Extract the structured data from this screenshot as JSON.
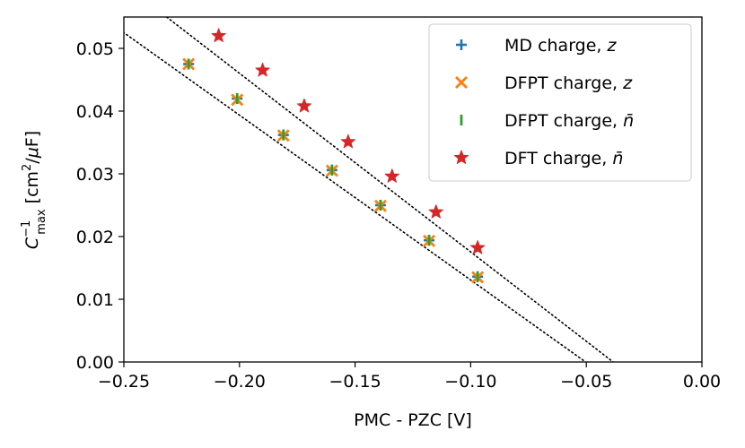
{
  "chart_data": {
    "type": "scatter",
    "xlabel": "PMC - PZC [V]",
    "ylabel": "C_max^-1 [cm²/µF]",
    "xlim": [
      -0.25,
      0.0
    ],
    "ylim": [
      0.0,
      0.055
    ],
    "x_ticks": [
      -0.25,
      -0.2,
      -0.15,
      -0.1,
      -0.05,
      0.0
    ],
    "x_tick_labels": [
      "−0.25",
      "−0.20",
      "−0.15",
      "−0.10",
      "−0.05",
      "0.00"
    ],
    "y_ticks": [
      0.0,
      0.01,
      0.02,
      0.03,
      0.04,
      0.05
    ],
    "y_tick_labels": [
      "0.00",
      "0.01",
      "0.02",
      "0.03",
      "0.04",
      "0.05"
    ],
    "grid": false,
    "legend_position": "top-right",
    "series": [
      {
        "name": "MD charge, z",
        "marker": "plus",
        "color": "#1f77b4",
        "x": [
          -0.222,
          -0.201,
          -0.181,
          -0.16,
          -0.139,
          -0.118,
          -0.097
        ],
        "y": [
          0.0475,
          0.042,
          0.0362,
          0.0306,
          0.025,
          0.0194,
          0.0136
        ]
      },
      {
        "name": "DFPT charge, z",
        "marker": "x",
        "color": "#ff7f0e",
        "x": [
          -0.222,
          -0.201,
          -0.181,
          -0.16,
          -0.139,
          -0.118,
          -0.097
        ],
        "y": [
          0.0475,
          0.0418,
          0.0361,
          0.0305,
          0.0249,
          0.0193,
          0.0135
        ]
      },
      {
        "name": "DFPT charge, n̄",
        "marker": "vline",
        "color": "#2ca02c",
        "x": [
          -0.222,
          -0.201,
          -0.181,
          -0.16,
          -0.139,
          -0.118,
          -0.097
        ],
        "y": [
          0.0475,
          0.042,
          0.0362,
          0.0306,
          0.025,
          0.0194,
          0.0136
        ]
      },
      {
        "name": "DFT charge, n̄",
        "marker": "star",
        "color": "#d62728",
        "x": [
          -0.209,
          -0.19,
          -0.172,
          -0.153,
          -0.134,
          -0.115,
          -0.097
        ],
        "y": [
          0.052,
          0.0465,
          0.0408,
          0.0351,
          0.0296,
          0.0239,
          0.0182
        ]
      }
    ],
    "fit_lines": [
      {
        "name": "fit-lower",
        "style": "dotted",
        "color": "#000000",
        "x": [
          -0.2595,
          -0.0503
        ],
        "y": [
          0.055,
          0.0
        ]
      },
      {
        "name": "fit-upper",
        "style": "dotted",
        "color": "#000000",
        "x": [
          -0.2315,
          -0.0384
        ],
        "y": [
          0.055,
          0.0
        ]
      }
    ],
    "legend": {
      "entries": [
        {
          "prefix": "MD charge, ",
          "sym": "z"
        },
        {
          "prefix": "DFPT charge, ",
          "sym": "z"
        },
        {
          "prefix": "DFPT charge, ",
          "sym": "n̄"
        },
        {
          "prefix": "DFT charge, ",
          "sym": "n̄"
        }
      ]
    },
    "axis_label_parts": {
      "x": "PMC - PZC [V]",
      "y_base": "C",
      "y_sup": "−1",
      "y_sub": "max",
      "y_units_open": " [cm",
      "y_units_sup": "2",
      "y_units_mid": "/",
      "y_units_mu": "μ",
      "y_units_close": "F]"
    }
  }
}
